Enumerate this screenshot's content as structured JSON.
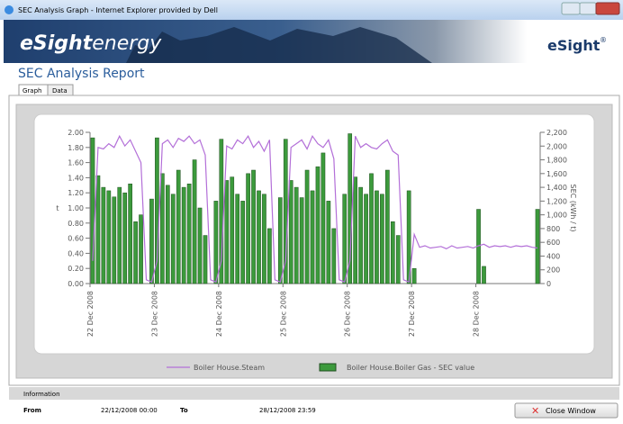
{
  "window": {
    "title": "SEC Analysis Graph - Internet Explorer provided by Dell"
  },
  "header": {
    "brand": "eSight",
    "brand_suffix": "energy",
    "logo": "eSight",
    "logo_mark": "®"
  },
  "report_title": "SEC Analysis Report",
  "tabs": [
    "Graph",
    "Data"
  ],
  "chart_data": {
    "type": "bar-line",
    "ylabel": "t",
    "y2label": "SEC (kWh / t)",
    "categories": [
      "22 Dec 2008",
      null,
      null,
      null,
      null,
      null,
      null,
      null,
      null,
      null,
      null,
      null,
      "23 Dec 2008",
      null,
      null,
      null,
      null,
      null,
      null,
      null,
      null,
      null,
      null,
      null,
      "24 Dec 2008",
      null,
      null,
      null,
      null,
      null,
      null,
      null,
      null,
      null,
      null,
      null,
      "25 Dec 2008",
      null,
      null,
      null,
      null,
      null,
      null,
      null,
      null,
      null,
      null,
      null,
      "26 Dec 2008",
      null,
      null,
      null,
      null,
      null,
      null,
      null,
      null,
      null,
      null,
      null,
      "27 Dec 2008",
      null,
      null,
      null,
      null,
      null,
      null,
      null,
      null,
      null,
      null,
      null,
      "28 Dec 2008",
      null,
      null,
      null,
      null,
      null,
      null,
      null,
      null,
      null,
      null,
      null
    ],
    "series": [
      {
        "name": "Boiler House.Steam",
        "kind": "line",
        "axis": "y",
        "color": "#b36fd8",
        "values": [
          0.3,
          1.8,
          1.78,
          1.85,
          1.8,
          1.95,
          1.82,
          1.9,
          1.75,
          1.6,
          0.05,
          0.02,
          0.3,
          1.85,
          1.9,
          1.8,
          1.92,
          1.88,
          1.95,
          1.85,
          1.9,
          1.7,
          0.05,
          0.02,
          0.3,
          1.82,
          1.78,
          1.9,
          1.85,
          1.95,
          1.8,
          1.88,
          1.75,
          1.9,
          0.05,
          0.02,
          0.3,
          1.8,
          1.85,
          1.9,
          1.78,
          1.95,
          1.85,
          1.8,
          1.9,
          1.65,
          0.05,
          0.02,
          0.3,
          1.95,
          1.8,
          1.85,
          1.8,
          1.78,
          1.85,
          1.9,
          1.75,
          1.7,
          0.05,
          0.02,
          0.65,
          0.48,
          0.5,
          0.47,
          0.48,
          0.49,
          0.46,
          0.5,
          0.47,
          0.48,
          0.49,
          0.47,
          0.5,
          0.52,
          0.48,
          0.5,
          0.49,
          0.5,
          0.48,
          0.5,
          0.49,
          0.5,
          0.48,
          0.47
        ]
      },
      {
        "name": "Boiler House.Boiler Gas - SEC value",
        "kind": "bar",
        "axis": "y2",
        "color": "#3c9a3c",
        "values": [
          2120,
          1570,
          1400,
          1350,
          1260,
          1400,
          1320,
          1450,
          900,
          1000,
          0,
          1230,
          2120,
          1600,
          1430,
          1300,
          1650,
          1400,
          1450,
          1800,
          1100,
          700,
          0,
          1200,
          2100,
          1500,
          1550,
          1300,
          1200,
          1600,
          1650,
          1350,
          1300,
          800,
          0,
          1250,
          2100,
          1500,
          1400,
          1250,
          1650,
          1350,
          1700,
          1900,
          1200,
          800,
          0,
          1300,
          2180,
          1550,
          1400,
          1300,
          1600,
          1350,
          1300,
          1650,
          900,
          700,
          0,
          1350,
          220,
          0,
          0,
          0,
          0,
          0,
          0,
          0,
          0,
          0,
          0,
          0,
          1080,
          250,
          0,
          0,
          0,
          0,
          0,
          0,
          0,
          0,
          0,
          1080
        ]
      }
    ],
    "ylim": [
      0,
      2
    ],
    "yticks": [
      {
        "value": 0,
        "label": "0.00"
      },
      {
        "value": 0.2,
        "label": "0.20"
      },
      {
        "value": 0.4,
        "label": "0.40"
      },
      {
        "value": 0.6,
        "label": "0.60"
      },
      {
        "value": 0.8,
        "label": "0.80"
      },
      {
        "value": 1,
        "label": "1.00"
      },
      {
        "value": 1.2,
        "label": "1.20"
      },
      {
        "value": 1.4,
        "label": "1.40"
      },
      {
        "value": 1.6,
        "label": "1.60"
      },
      {
        "value": 1.8,
        "label": "1.80"
      },
      {
        "value": 2,
        "label": "2.00"
      }
    ],
    "y2lim": [
      0,
      2200
    ],
    "y2ticks": [
      0,
      200,
      400,
      600,
      800,
      {
        "value": 1000,
        "label": "1,000"
      },
      {
        "value": 1200,
        "label": "1,200"
      },
      {
        "value": 1400,
        "label": "1,400"
      },
      {
        "value": 1600,
        "label": "1,600"
      },
      {
        "value": 1800,
        "label": "1,800"
      },
      {
        "value": 2000,
        "label": "2,000"
      },
      {
        "value": 2200,
        "label": "2,200"
      }
    ],
    "legend": "bottom"
  },
  "info": {
    "heading": "Information",
    "from_label": "From",
    "from": "22/12/2008 00:00",
    "to_label": "To",
    "to": "28/12/2008 23:59",
    "button": "Close Window"
  }
}
